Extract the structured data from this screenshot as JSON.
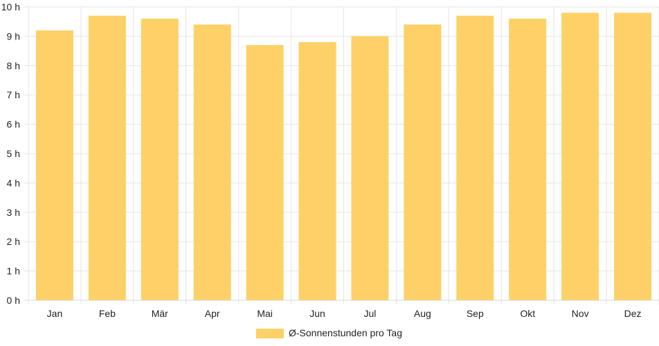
{
  "chart_data": {
    "type": "bar",
    "categories": [
      "Jan",
      "Feb",
      "Mär",
      "Apr",
      "Mai",
      "Jun",
      "Jul",
      "Aug",
      "Sep",
      "Okt",
      "Nov",
      "Dez"
    ],
    "series": [
      {
        "name": "Ø-Sonnenstunden pro Tag",
        "values": [
          9.2,
          9.7,
          9.6,
          9.4,
          8.7,
          8.8,
          9.0,
          9.4,
          9.7,
          9.6,
          9.8,
          9.8
        ]
      }
    ],
    "y_tick_labels": [
      "0 h",
      "1 h",
      "2 h",
      "3 h",
      "4 h",
      "5 h",
      "6 h",
      "7 h",
      "8 h",
      "9 h",
      "10 h"
    ],
    "ylim": [
      0,
      10
    ],
    "grid": true,
    "legend_position": "bottom",
    "colors": {
      "bar": "#fdd168",
      "grid": "#e5e5e5",
      "text": "#222222"
    }
  }
}
